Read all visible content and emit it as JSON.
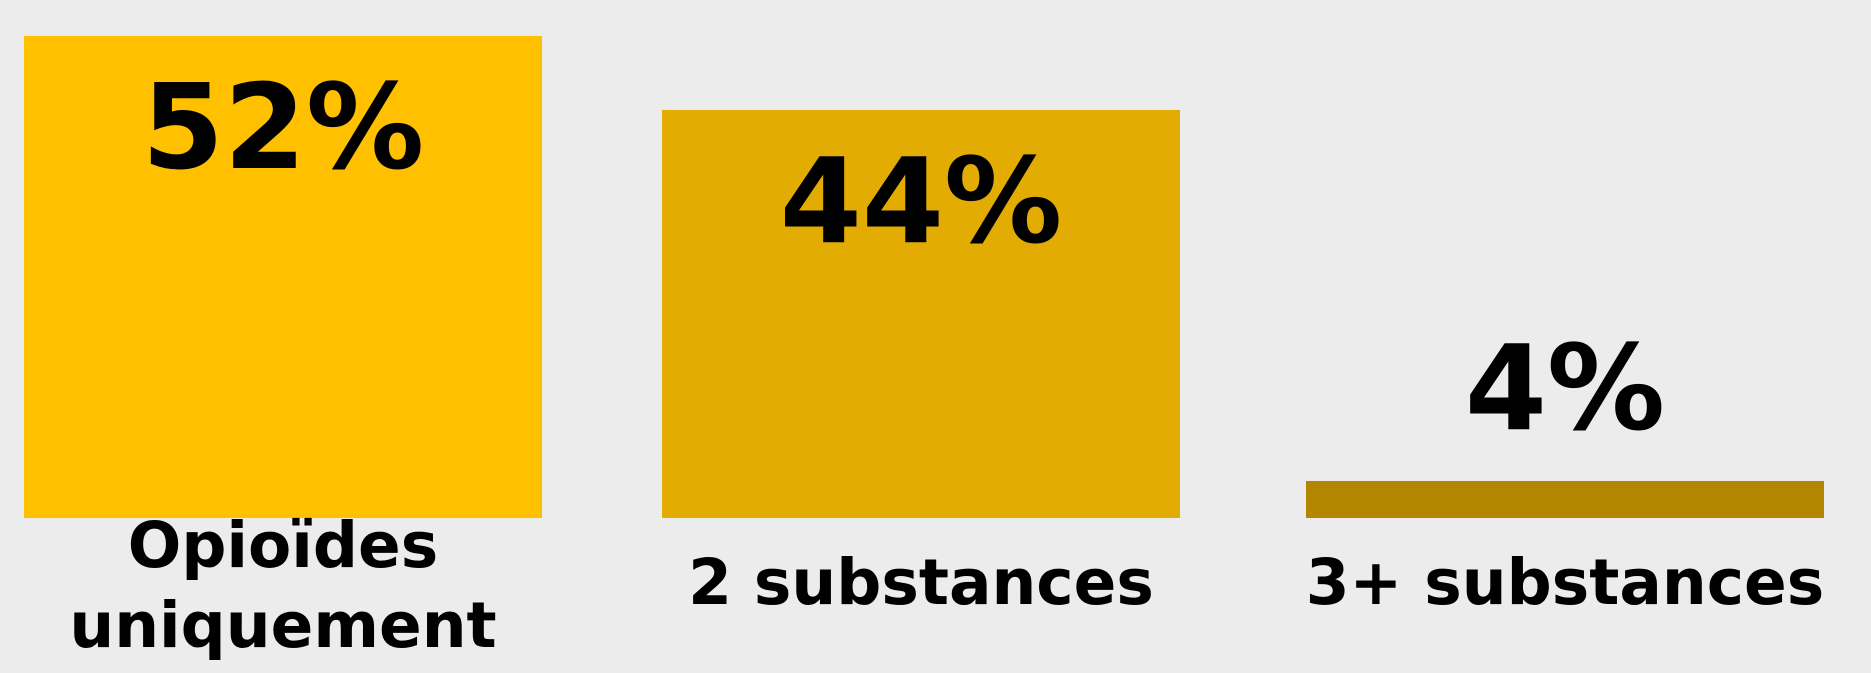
{
  "chart_data": {
    "type": "bar",
    "categories": [
      "Opioïdes uniquement",
      "2 substances",
      "3+ substances"
    ],
    "category_lines": [
      [
        "Opioïdes",
        "uniquement"
      ],
      [
        "2 substances"
      ],
      [
        "3+ substances"
      ]
    ],
    "values": [
      52,
      44,
      4
    ],
    "value_labels": [
      "52%",
      "44%",
      "4%"
    ],
    "unit": "%",
    "ylim": [
      0,
      52
    ],
    "grid": false,
    "legend": "none",
    "colors": [
      "#FFC000",
      "#E2AC02",
      "#B38600"
    ],
    "title": "",
    "xlabel": "",
    "ylabel": ""
  }
}
